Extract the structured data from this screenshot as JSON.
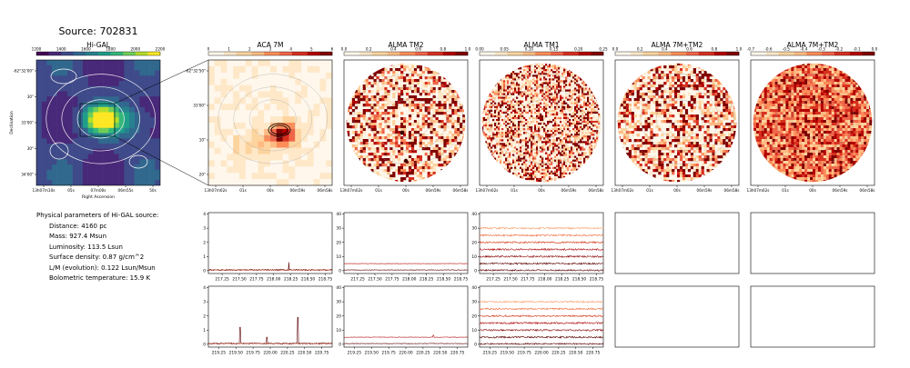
{
  "source_title": "Source: 702831",
  "params": {
    "heading": "Physical parameters of Hi-GAL source:",
    "items": [
      "Distance: 4160 pc",
      "Mass: 927.4 Msun",
      "Luminosity: 113.5 Lsun",
      "Surface density: 0.87 g/cm^2",
      "L/M (evolution): 0.122 Lsun/Msun",
      "Bolometric temperature: 15.9 K"
    ]
  },
  "colors": {
    "spectrum_dark": "#5c0000",
    "spectrum_mid": "#b01010",
    "spectrum_red": "#d43a1a",
    "spectrum_orange": "#f07040",
    "spectrum_light": "#f8a070",
    "fit_line": "#c04020"
  },
  "chart_data": [
    {
      "type": "heatmap",
      "panel": "Hi-GAL",
      "title": "Hi-GAL",
      "colormap": "viridis",
      "colorbar_ticks": [
        "1200",
        "1400",
        "1600",
        "1800",
        "2000",
        "2200"
      ],
      "xlabel": "Right Ascension",
      "ylabel": "Declination",
      "xticks": [
        "13h07m10s",
        "05s",
        "07m00s",
        "06m55s",
        "50s"
      ],
      "yticks": [
        "-62°32'00\"",
        "30\"",
        "33'00\"",
        "30\"",
        "34'00\""
      ]
    },
    {
      "type": "heatmap",
      "panel": "ACA 7M",
      "title": "ACA 7M",
      "colormap": "OrRd",
      "colorbar_ticks": [
        "0",
        "1",
        "2",
        "3",
        "4",
        "5",
        "6"
      ],
      "xticks": [
        "13h07m02s",
        "01s",
        "00s",
        "06m59s",
        "06m58s"
      ],
      "yticks": [
        "-62°32'50\"",
        "33'00\"",
        "10\"",
        "20\""
      ]
    },
    {
      "type": "heatmap",
      "panel": "ALMA TM2",
      "title": "ALMA TM2",
      "colormap": "OrRd",
      "colorbar_ticks": [
        "0.0",
        "0.2",
        "0.4",
        "0.6",
        "0.8",
        "1.0"
      ],
      "xticks": [
        "13h07m02s",
        "01s",
        "00s",
        "06m59s",
        "06m58s"
      ]
    },
    {
      "type": "heatmap",
      "panel": "ALMA TM1",
      "title": "ALMA TM1",
      "colormap": "OrRd",
      "colorbar_ticks": [
        "0.00",
        "0.05",
        "0.10",
        "0.15",
        "0.20",
        "0.25"
      ],
      "xticks": [
        "13h07m02s",
        "01s",
        "00s",
        "06m59s",
        "06m58s"
      ]
    },
    {
      "type": "heatmap",
      "panel": "ALMA 7M+TM2",
      "title": "ALMA 7M+TM2",
      "colormap": "OrRd",
      "colorbar_ticks": [
        "0.0",
        "0.2",
        "0.4",
        "0.6",
        "0.8",
        "1.0"
      ],
      "xticks": [
        "13h07m02s",
        "01s",
        "00s",
        "06m59s",
        "06m58s"
      ]
    },
    {
      "type": "heatmap",
      "panel": "ALMA 7M+TM2",
      "title": "ALMA 7M+TM2",
      "colormap": "OrRd",
      "colorbar_ticks": [
        "-0.7",
        "-0.6",
        "-0.5",
        "-0.4",
        "-0.3",
        "-0.2",
        "-0.1",
        "0.0"
      ],
      "xticks": [
        "13h07m02s",
        "01s",
        "00s",
        "06m59s",
        "06m58s"
      ]
    },
    {
      "type": "line",
      "panel": "ACA 7M spectrum, upper",
      "xlim": [
        217.05,
        218.85
      ],
      "ylim": [
        -0.2,
        4.1
      ],
      "xticks": [
        "217.25",
        "217.50",
        "217.75",
        "218.00",
        "218.25",
        "218.50",
        "218.75"
      ],
      "yticks": [
        "0",
        "1",
        "2",
        "3",
        "4"
      ],
      "series": [
        {
          "baseline": 0.05,
          "noise": 0.05,
          "color": "#5c0000",
          "peaks": [
            [
              218.22,
              0.55
            ]
          ]
        }
      ],
      "fit": {
        "y": 0.05,
        "color": "#c04020"
      }
    },
    {
      "type": "line",
      "panel": "ALMA TM2 spectrum, upper",
      "xlim": [
        217.05,
        218.85
      ],
      "ylim": [
        -2,
        41
      ],
      "xticks": [
        "217.25",
        "217.50",
        "217.75",
        "218.00",
        "218.25",
        "218.50",
        "218.75"
      ],
      "yticks": [
        "0",
        "10",
        "20",
        "30",
        "40"
      ],
      "series": [
        {
          "baseline": 0.5,
          "noise": 0.2,
          "color": "#5c0000"
        },
        {
          "baseline": 5.0,
          "noise": 0.15,
          "color": "#b01010"
        }
      ]
    },
    {
      "type": "line",
      "panel": "ALMA TM1 spectrum, upper",
      "xlim": [
        217.05,
        218.85
      ],
      "ylim": [
        -2,
        41
      ],
      "xticks": [
        "217.25",
        "217.50",
        "217.75",
        "218.00",
        "218.25",
        "218.50",
        "218.75"
      ],
      "yticks": [
        "0",
        "10",
        "20",
        "30",
        "40"
      ],
      "series": [
        {
          "baseline": 30.0,
          "noise": 0.6,
          "color": "#f8a070"
        },
        {
          "baseline": 25.0,
          "noise": 0.6,
          "color": "#f07040"
        },
        {
          "baseline": 20.0,
          "noise": 0.6,
          "color": "#d43a1a"
        },
        {
          "baseline": 15.0,
          "noise": 0.6,
          "color": "#b01010"
        },
        {
          "baseline": 10.0,
          "noise": 0.6,
          "color": "#8a0808"
        },
        {
          "baseline": 5.0,
          "noise": 0.6,
          "color": "#5c0000"
        },
        {
          "baseline": 0.3,
          "noise": 0.5,
          "color": "#5c0000"
        }
      ]
    },
    {
      "type": "line",
      "panel": "ACA 7M spectrum, lower",
      "xlim": [
        219.1,
        220.9
      ],
      "ylim": [
        -0.2,
        4.1
      ],
      "xticks": [
        "219.25",
        "219.50",
        "219.75",
        "220.00",
        "220.25",
        "220.50",
        "220.75"
      ],
      "yticks": [
        "0",
        "1",
        "2",
        "3",
        "4"
      ],
      "series": [
        {
          "baseline": 0.05,
          "noise": 0.05,
          "color": "#5c0000",
          "peaks": [
            [
              219.56,
              1.15
            ],
            [
              219.95,
              0.45
            ],
            [
              220.4,
              1.85
            ]
          ]
        }
      ],
      "fit": {
        "y": 0.05,
        "color": "#c04020"
      }
    },
    {
      "type": "line",
      "panel": "ALMA TM2 spectrum, lower",
      "xlim": [
        219.1,
        220.9
      ],
      "ylim": [
        -2,
        41
      ],
      "xticks": [
        "219.25",
        "219.50",
        "219.75",
        "220.00",
        "220.25",
        "220.50",
        "220.75"
      ],
      "yticks": [
        "0",
        "10",
        "20",
        "30",
        "40"
      ],
      "series": [
        {
          "baseline": 0.5,
          "noise": 0.2,
          "color": "#5c0000"
        },
        {
          "baseline": 5.0,
          "noise": 0.15,
          "color": "#b01010",
          "peaks": [
            [
              220.4,
              1.5
            ]
          ]
        }
      ]
    },
    {
      "type": "line",
      "panel": "ALMA TM1 spectrum, lower",
      "xlim": [
        219.1,
        220.9
      ],
      "ylim": [
        -2,
        41
      ],
      "xticks": [
        "219.25",
        "219.50",
        "219.75",
        "220.00",
        "220.25",
        "220.50",
        "220.75"
      ],
      "yticks": [
        "0",
        "10",
        "20",
        "30",
        "40"
      ],
      "series": [
        {
          "baseline": 30.0,
          "noise": 0.6,
          "color": "#f8a070"
        },
        {
          "baseline": 25.0,
          "noise": 0.6,
          "color": "#f07040"
        },
        {
          "baseline": 20.0,
          "noise": 0.6,
          "color": "#d43a1a"
        },
        {
          "baseline": 15.0,
          "noise": 0.6,
          "color": "#b01010"
        },
        {
          "baseline": 10.0,
          "noise": 0.6,
          "color": "#8a0808"
        },
        {
          "baseline": 5.0,
          "noise": 0.6,
          "color": "#5c0000"
        },
        {
          "baseline": 0.3,
          "noise": 0.5,
          "color": "#5c0000"
        }
      ]
    },
    {
      "type": "line",
      "panel": "empty 7M+TM2 upper",
      "empty": true
    },
    {
      "type": "line",
      "panel": "empty 7M+TM2 (2) upper",
      "empty": true
    },
    {
      "type": "line",
      "panel": "empty 7M+TM2 lower",
      "empty": true
    },
    {
      "type": "line",
      "panel": "empty 7M+TM2 (2) lower",
      "empty": true
    }
  ]
}
